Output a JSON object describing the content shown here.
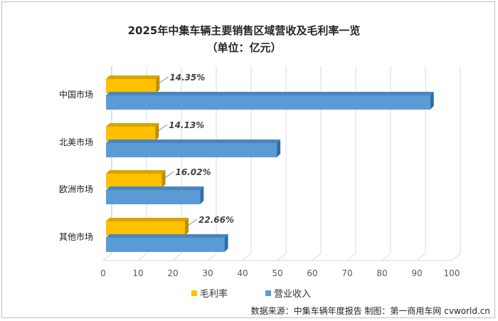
{
  "chart_data": {
    "type": "bar",
    "orientation": "horizontal",
    "title": "2025年中集车辆主要销售区域营收及毛利率一览",
    "subtitle": "（单位：亿元）",
    "categories": [
      "中国市场",
      "北美市场",
      "欧洲市场",
      "其他市场"
    ],
    "series": [
      {
        "name": "毛利率",
        "values": [
          14.35,
          14.13,
          16.02,
          22.66
        ],
        "labels": [
          "14.35%",
          "14.13%",
          "16.02%",
          "22.66%"
        ],
        "color": "#ffc000"
      },
      {
        "name": "营业收入",
        "values": [
          93,
          49,
          27,
          34
        ],
        "color": "#5b9bd5"
      }
    ],
    "xlim": [
      0,
      100
    ],
    "xticks": [
      0,
      10,
      20,
      30,
      40,
      50,
      60,
      70,
      80,
      90,
      100
    ],
    "grid": true,
    "legend": "bottom-left"
  },
  "source_note": "数据来源：中集车辆年度报告 制图：第一商用车网 cvworld.cn"
}
